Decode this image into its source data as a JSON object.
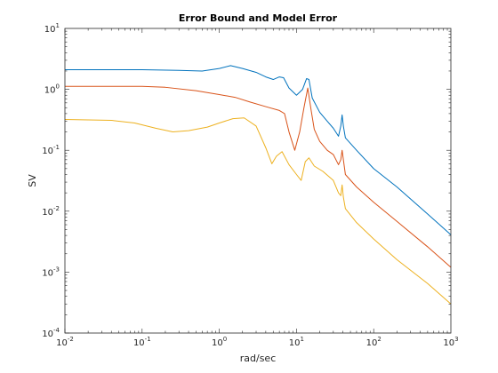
{
  "chart_data": {
    "type": "line",
    "title": "Error Bound and Model Error",
    "xlabel": "rad/sec",
    "ylabel": "SV",
    "xscale": "log",
    "yscale": "log",
    "xlim": [
      0.01,
      1000
    ],
    "ylim": [
      0.0001,
      10
    ],
    "grid": false,
    "x_ticks": [
      {
        "value": 0.01,
        "base": "10",
        "exp": "-2"
      },
      {
        "value": 0.1,
        "base": "10",
        "exp": "-1"
      },
      {
        "value": 1,
        "base": "10",
        "exp": "0"
      },
      {
        "value": 10,
        "base": "10",
        "exp": "1"
      },
      {
        "value": 100,
        "base": "10",
        "exp": "2"
      },
      {
        "value": 1000,
        "base": "10",
        "exp": "3"
      }
    ],
    "y_ticks": [
      {
        "value": 0.0001,
        "base": "10",
        "exp": "-4"
      },
      {
        "value": 0.001,
        "base": "10",
        "exp": "-3"
      },
      {
        "value": 0.01,
        "base": "10",
        "exp": "-2"
      },
      {
        "value": 0.1,
        "base": "10",
        "exp": "-1"
      },
      {
        "value": 1,
        "base": "10",
        "exp": "0"
      },
      {
        "value": 10,
        "base": "10",
        "exp": "1"
      }
    ],
    "series": [
      {
        "color": "#0072BD",
        "points": [
          [
            0.01,
            2.1
          ],
          [
            0.1,
            2.1
          ],
          [
            0.3,
            2.05
          ],
          [
            0.6,
            2.0
          ],
          [
            1.0,
            2.2
          ],
          [
            1.4,
            2.45
          ],
          [
            2.0,
            2.2
          ],
          [
            3.0,
            1.9
          ],
          [
            4.0,
            1.6
          ],
          [
            5.0,
            1.45
          ],
          [
            6.0,
            1.6
          ],
          [
            6.8,
            1.55
          ],
          [
            8.0,
            1.05
          ],
          [
            10.0,
            0.8
          ],
          [
            12.0,
            1.0
          ],
          [
            13.5,
            1.5
          ],
          [
            14.5,
            1.45
          ],
          [
            16.0,
            0.72
          ],
          [
            20.0,
            0.42
          ],
          [
            25.0,
            0.3
          ],
          [
            30.0,
            0.23
          ],
          [
            35.0,
            0.17
          ],
          [
            37.5,
            0.25
          ],
          [
            39.0,
            0.38
          ],
          [
            40.5,
            0.25
          ],
          [
            43.0,
            0.16
          ],
          [
            60.0,
            0.1
          ],
          [
            100.0,
            0.05
          ],
          [
            200.0,
            0.025
          ],
          [
            500.0,
            0.009
          ],
          [
            1000.0,
            0.0041
          ]
        ]
      },
      {
        "color": "#D95319",
        "points": [
          [
            0.01,
            1.12
          ],
          [
            0.1,
            1.12
          ],
          [
            0.2,
            1.08
          ],
          [
            0.5,
            0.95
          ],
          [
            1.0,
            0.82
          ],
          [
            1.6,
            0.74
          ],
          [
            2.5,
            0.62
          ],
          [
            4.0,
            0.52
          ],
          [
            6.0,
            0.45
          ],
          [
            7.0,
            0.4
          ],
          [
            8.0,
            0.2
          ],
          [
            9.5,
            0.1
          ],
          [
            11.0,
            0.2
          ],
          [
            12.5,
            0.5
          ],
          [
            14.0,
            1.05
          ],
          [
            15.5,
            0.45
          ],
          [
            17.0,
            0.22
          ],
          [
            20.0,
            0.14
          ],
          [
            25.0,
            0.1
          ],
          [
            30.0,
            0.085
          ],
          [
            35.0,
            0.058
          ],
          [
            37.5,
            0.07
          ],
          [
            39.0,
            0.1
          ],
          [
            40.5,
            0.07
          ],
          [
            43.0,
            0.04
          ],
          [
            60.0,
            0.025
          ],
          [
            100.0,
            0.014
          ],
          [
            200.0,
            0.0068
          ],
          [
            500.0,
            0.0026
          ],
          [
            1000.0,
            0.0012
          ]
        ]
      },
      {
        "color": "#EDB120",
        "points": [
          [
            0.01,
            0.32
          ],
          [
            0.04,
            0.31
          ],
          [
            0.08,
            0.28
          ],
          [
            0.15,
            0.23
          ],
          [
            0.25,
            0.2
          ],
          [
            0.4,
            0.21
          ],
          [
            0.7,
            0.24
          ],
          [
            1.0,
            0.28
          ],
          [
            1.5,
            0.33
          ],
          [
            2.1,
            0.34
          ],
          [
            3.0,
            0.25
          ],
          [
            4.0,
            0.11
          ],
          [
            4.8,
            0.06
          ],
          [
            5.5,
            0.08
          ],
          [
            6.5,
            0.095
          ],
          [
            8.0,
            0.058
          ],
          [
            10.0,
            0.04
          ],
          [
            11.5,
            0.032
          ],
          [
            13.0,
            0.065
          ],
          [
            14.5,
            0.075
          ],
          [
            17.0,
            0.055
          ],
          [
            22.0,
            0.045
          ],
          [
            30.0,
            0.032
          ],
          [
            35.0,
            0.02
          ],
          [
            37.5,
            0.018
          ],
          [
            39.0,
            0.027
          ],
          [
            40.5,
            0.017
          ],
          [
            43.0,
            0.011
          ],
          [
            60.0,
            0.0065
          ],
          [
            100.0,
            0.0035
          ],
          [
            200.0,
            0.0016
          ],
          [
            500.0,
            0.00065
          ],
          [
            1000.0,
            0.0003
          ]
        ]
      }
    ]
  }
}
